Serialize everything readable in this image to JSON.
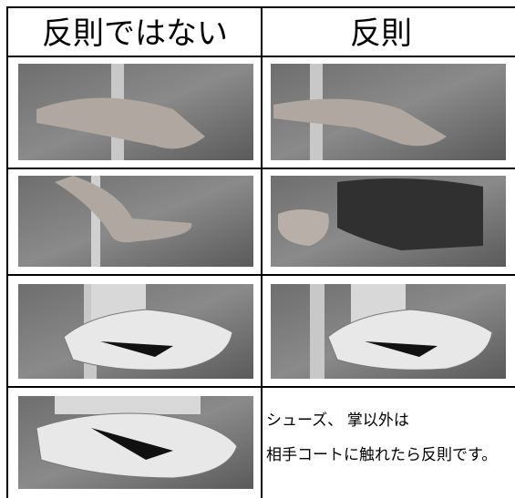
{
  "table": {
    "headers": [
      "反則ではない",
      "反則"
    ],
    "note": [
      "シューズ、 掌以外は",
      "相手コートに触れたら反則です。"
    ]
  }
}
